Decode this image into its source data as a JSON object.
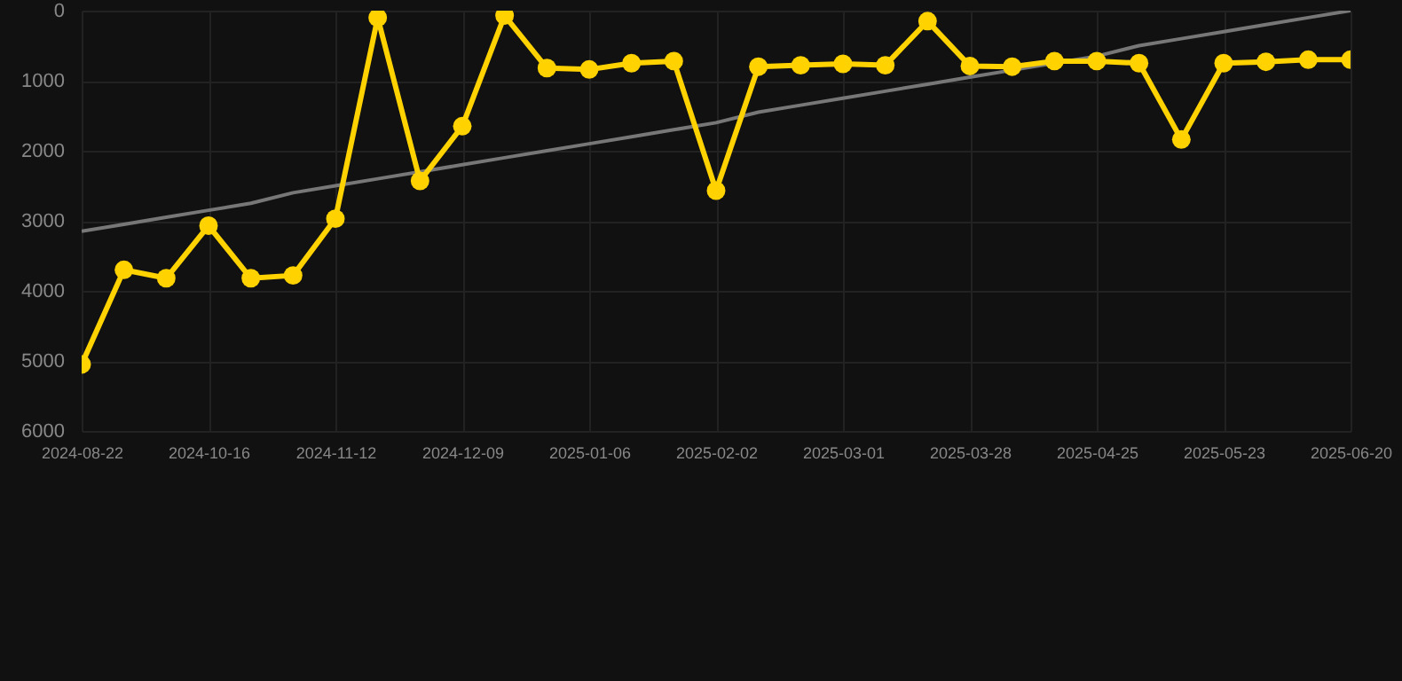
{
  "chart_data": {
    "type": "line",
    "categories": [
      "2024-08-22",
      null,
      null,
      "2024-10-16",
      null,
      null,
      "2024-11-12",
      null,
      null,
      "2024-12-09",
      null,
      null,
      "2025-01-06",
      null,
      null,
      "2025-02-02",
      null,
      null,
      "2025-03-01",
      null,
      null,
      "2025-03-28",
      null,
      null,
      "2025-04-25",
      null,
      null,
      "2025-05-23",
      null,
      null,
      "2025-06-20"
    ],
    "series": [
      {
        "color": "#ffd200",
        "values": [
          5050,
          3700,
          3820,
          3070,
          3820,
          3780,
          2970,
          100,
          2430,
          1650,
          70,
          820,
          840,
          750,
          720,
          2570,
          800,
          780,
          760,
          780,
          150,
          790,
          800,
          720,
          720,
          750,
          1840,
          750,
          730,
          700,
          700
        ],
        "marker": "circle"
      },
      {
        "type": "line",
        "color": "#777777",
        "values": [
          3150,
          3050,
          2950,
          2850,
          2750,
          2600,
          2500,
          2400,
          2300,
          2200,
          2100,
          2000,
          1900,
          1800,
          1700,
          1600,
          1450,
          1350,
          1250,
          1150,
          1050,
          950,
          850,
          750,
          650,
          500,
          400,
          300,
          200,
          100,
          0
        ],
        "marker": "none",
        "line_style": "solid"
      }
    ],
    "ylim": [
      6000,
      0
    ],
    "yticks": [
      0,
      1000,
      2000,
      3000,
      4000,
      5000,
      6000
    ],
    "grid": true
  }
}
